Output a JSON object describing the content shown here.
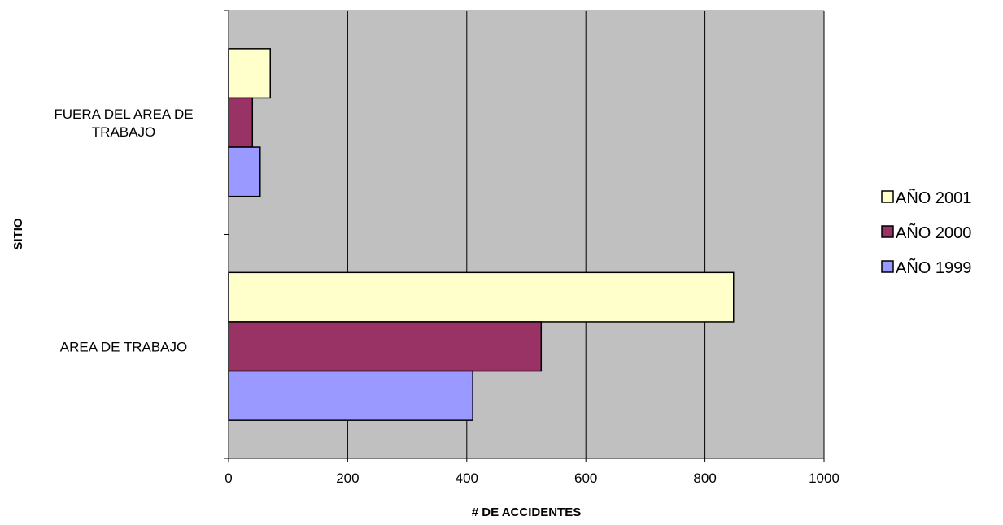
{
  "chart_data": {
    "type": "bar",
    "orientation": "horizontal",
    "title": "",
    "xlabel": "# DE ACCIDENTES",
    "ylabel": "SITIO",
    "xlim": [
      0,
      1000
    ],
    "x_ticks": [
      "0",
      "200",
      "400",
      "600",
      "800",
      "1000"
    ],
    "categories": [
      [
        "FUERA DEL AREA DE",
        "TRABAJO"
      ],
      [
        "AREA DE TRABAJO"
      ]
    ],
    "series": [
      {
        "name": "AÑO 1999",
        "color": "#9999ff",
        "values": [
          53,
          410
        ]
      },
      {
        "name": "AÑO 2000",
        "color": "#993366",
        "values": [
          40,
          525
        ]
      },
      {
        "name": "AÑO 2001",
        "color": "#ffffcc",
        "values": [
          70,
          848
        ]
      }
    ],
    "legend_order": [
      "AÑO 2001",
      "AÑO 2000",
      "AÑO 1999"
    ],
    "legend_position": "right",
    "grid": "vertical",
    "plot_background": "#c0c0c0"
  }
}
